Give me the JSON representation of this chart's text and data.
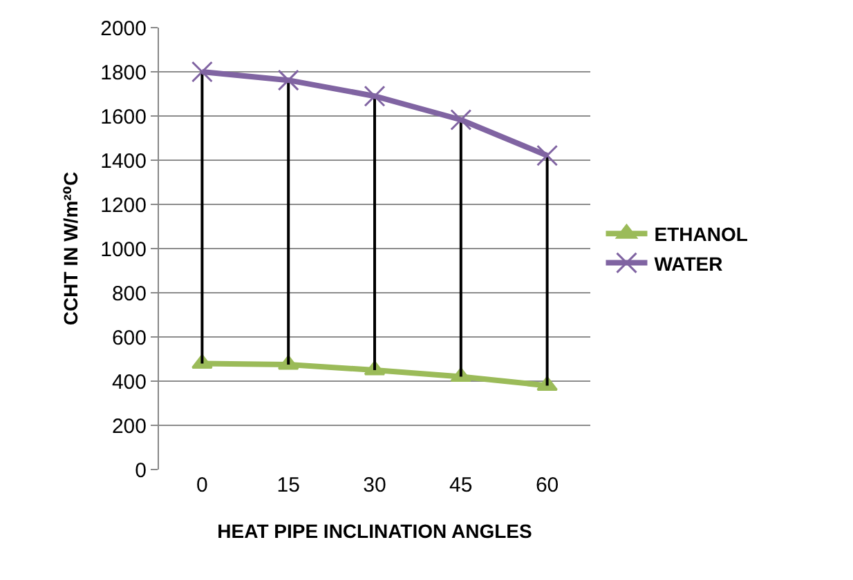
{
  "chart_data": {
    "type": "line",
    "xlabel": "HEAT PIPE INCLINATION ANGLES",
    "ylabel": "CCHT IN W/m²⁰C",
    "categories": [
      "0",
      "15",
      "30",
      "45",
      "60"
    ],
    "series": [
      {
        "name": "ETHANOL",
        "color": "#9bbb59",
        "marker": "triangle",
        "values": [
          480,
          475,
          450,
          420,
          380
        ]
      },
      {
        "name": "WATER",
        "color": "#8064a2",
        "marker": "cross",
        "values": [
          1800,
          1762,
          1690,
          1583,
          1421
        ],
        "errors": [
          [
            480,
            1800
          ],
          [
            475,
            1762
          ],
          [
            450,
            1690
          ],
          [
            420,
            1583
          ],
          [
            380,
            1421
          ]
        ]
      }
    ],
    "ylim": [
      0,
      2000
    ],
    "yticks": [
      0,
      200,
      400,
      600,
      800,
      1000,
      1200,
      1400,
      1600,
      1800,
      2000
    ],
    "grid": "y",
    "legend": "right"
  }
}
